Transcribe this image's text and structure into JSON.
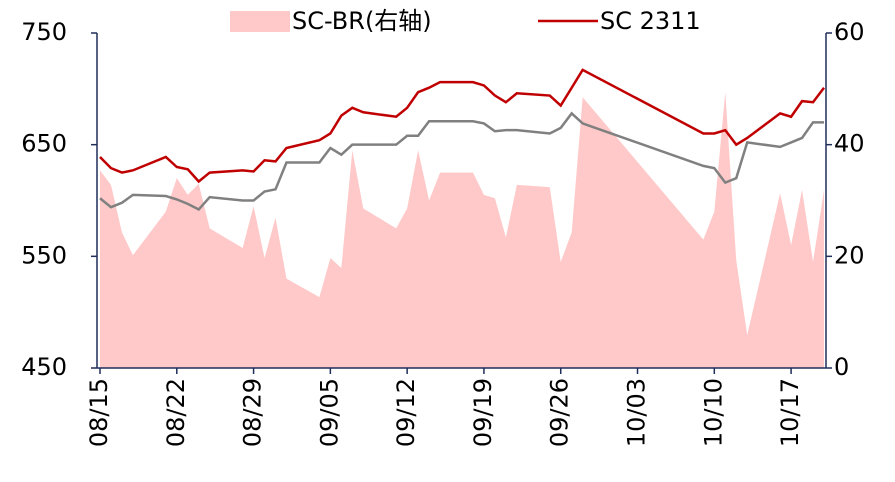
{
  "chart_data": {
    "type": "line",
    "x": [
      "08/15",
      "08/16",
      "08/17",
      "08/18",
      "08/21",
      "08/22",
      "08/23",
      "08/24",
      "08/25",
      "08/28",
      "08/29",
      "08/30",
      "08/31",
      "09/01",
      "09/04",
      "09/05",
      "09/06",
      "09/07",
      "09/08",
      "09/11",
      "09/12",
      "09/13",
      "09/14",
      "09/15",
      "09/18",
      "09/19",
      "09/20",
      "09/21",
      "09/22",
      "09/25",
      "09/26",
      "09/27",
      "09/28",
      "10/09",
      "10/10",
      "10/11",
      "10/12",
      "10/13",
      "10/16",
      "10/17",
      "10/18",
      "10/19",
      "10/20"
    ],
    "series": [
      {
        "name": "SC-BR(右轴)",
        "type": "area",
        "axis": "y2",
        "color": "#ffc9c9",
        "values": [
          35.4,
          32.8,
          24.3,
          20.2,
          28,
          34,
          31,
          33,
          25,
          21.5,
          29,
          19.7,
          26.9,
          16,
          12.7,
          19.7,
          17.9,
          39,
          28.6,
          25,
          28.6,
          39,
          30,
          35,
          35,
          31,
          30.4,
          23.4,
          32.8,
          32.4,
          19,
          24.3,
          48.5,
          23,
          28,
          49.4,
          19.3,
          5.9,
          31.3,
          22,
          31.9,
          19,
          31.9
        ]
      },
      {
        "name": "SC 2311",
        "type": "line",
        "color": "#c00000",
        "values": [
          639,
          629,
          625,
          627,
          639,
          630,
          628,
          617,
          625,
          627,
          626,
          636,
          635,
          647,
          654,
          660,
          676,
          683,
          679,
          675,
          683,
          697,
          701,
          706,
          706,
          703,
          694,
          688,
          696,
          694,
          685,
          701,
          717,
          660,
          660,
          663,
          650,
          656,
          678,
          675,
          689,
          688,
          701
        ]
      },
      {
        "type": "line",
        "color": "#808080",
        "values": [
          602,
          594,
          598,
          605,
          604,
          601,
          597,
          592,
          603,
          600,
          600,
          608,
          610,
          634,
          634,
          647,
          641,
          650,
          650,
          650,
          658,
          658,
          671,
          671,
          671,
          669,
          662,
          663,
          663,
          660,
          665,
          678,
          669,
          631,
          629,
          616,
          620,
          652,
          648,
          652,
          656,
          670,
          670
        ]
      }
    ],
    "xticks": [
      "08/15",
      "08/22",
      "08/29",
      "09/05",
      "09/12",
      "09/19",
      "09/26",
      "10/03",
      "10/10",
      "10/17"
    ],
    "ylim": [
      450,
      750
    ],
    "yticks": [
      450,
      550,
      650,
      750
    ],
    "y2lim": [
      0,
      60
    ],
    "y2ticks": [
      0,
      20,
      40,
      60
    ]
  }
}
